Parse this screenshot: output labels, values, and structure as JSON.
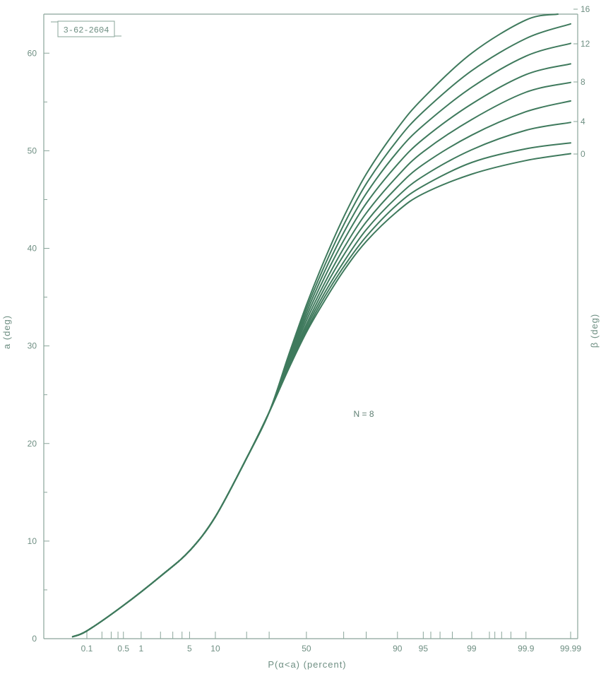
{
  "figure_id": "3-62-2604",
  "chart_data": {
    "type": "line",
    "annotation": "N = 8",
    "xlabel": "P(α<a) (percent)",
    "ylabel_left": "a (deg)",
    "ylabel_right": "β (deg)",
    "x_scale": "normal-probability",
    "x_ticks": [
      {
        "value": 0.1,
        "label": "0.1"
      },
      {
        "value": 0.2,
        "label": ""
      },
      {
        "value": 0.3,
        "label": ""
      },
      {
        "value": 0.4,
        "label": ""
      },
      {
        "value": 0.5,
        "label": "0.5"
      },
      {
        "value": 1,
        "label": "1"
      },
      {
        "value": 2,
        "label": ""
      },
      {
        "value": 3,
        "label": ""
      },
      {
        "value": 4,
        "label": ""
      },
      {
        "value": 5,
        "label": "5"
      },
      {
        "value": 10,
        "label": "10"
      },
      {
        "value": 20,
        "label": ""
      },
      {
        "value": 30,
        "label": ""
      },
      {
        "value": 50,
        "label": "50"
      },
      {
        "value": 70,
        "label": ""
      },
      {
        "value": 80,
        "label": ""
      },
      {
        "value": 90,
        "label": "90"
      },
      {
        "value": 95,
        "label": "95"
      },
      {
        "value": 96,
        "label": ""
      },
      {
        "value": 97,
        "label": ""
      },
      {
        "value": 98,
        "label": ""
      },
      {
        "value": 99,
        "label": "99"
      },
      {
        "value": 99.5,
        "label": ""
      },
      {
        "value": 99.6,
        "label": ""
      },
      {
        "value": 99.7,
        "label": ""
      },
      {
        "value": 99.8,
        "label": ""
      },
      {
        "value": 99.9,
        "label": "99.9"
      },
      {
        "value": 99.99,
        "label": "99.99"
      }
    ],
    "ylim": [
      0,
      64
    ],
    "y_ticks": [
      0,
      10,
      20,
      30,
      40,
      50,
      60
    ],
    "y_minor_ticks": [
      5,
      15,
      25,
      35,
      45,
      55
    ],
    "right_labels": [
      "16",
      "12",
      "8",
      "4",
      "0"
    ],
    "series": [
      {
        "beta": 0,
        "x": [
          0.05,
          0.1,
          0.5,
          2,
          5,
          10,
          20,
          30,
          40,
          50,
          60,
          70,
          80,
          90,
          95,
          99,
          99.9,
          99.99
        ],
        "y": [
          0.2,
          0.8,
          3.4,
          6.4,
          9.0,
          12.5,
          18.5,
          23.2,
          27.6,
          31.4,
          34.6,
          37.7,
          40.7,
          43.8,
          45.6,
          47.6,
          49.0,
          49.7
        ]
      },
      {
        "beta": 2,
        "x": [
          0.05,
          0.1,
          0.5,
          2,
          5,
          10,
          20,
          30,
          40,
          50,
          60,
          70,
          80,
          90,
          95,
          99,
          99.9,
          99.99
        ],
        "y": [
          0.2,
          0.8,
          3.4,
          6.4,
          9.0,
          12.5,
          18.5,
          23.2,
          27.7,
          31.6,
          35.0,
          38.1,
          41.2,
          44.5,
          46.4,
          48.8,
          50.2,
          50.8
        ]
      },
      {
        "beta": 4,
        "x": [
          0.05,
          0.1,
          0.5,
          2,
          5,
          10,
          20,
          30,
          40,
          50,
          60,
          70,
          80,
          90,
          95,
          99,
          99.9,
          99.99
        ],
        "y": [
          0.2,
          0.8,
          3.4,
          6.4,
          9.0,
          12.5,
          18.5,
          23.2,
          27.8,
          31.9,
          35.4,
          38.6,
          41.9,
          45.3,
          47.4,
          50.1,
          52.1,
          52.9
        ]
      },
      {
        "beta": 6,
        "x": [
          0.05,
          0.1,
          0.5,
          2,
          5,
          10,
          20,
          30,
          40,
          50,
          60,
          70,
          80,
          90,
          95,
          99,
          99.9,
          99.99
        ],
        "y": [
          0.2,
          0.8,
          3.4,
          6.4,
          9.0,
          12.5,
          18.5,
          23.2,
          28.0,
          32.2,
          35.9,
          39.3,
          42.7,
          46.3,
          48.6,
          51.6,
          54.0,
          55.1
        ]
      },
      {
        "beta": 8,
        "x": [
          0.05,
          0.1,
          0.5,
          2,
          5,
          10,
          20,
          30,
          40,
          50,
          60,
          70,
          80,
          90,
          95,
          99,
          99.9,
          99.99
        ],
        "y": [
          0.2,
          0.8,
          3.4,
          6.4,
          9.0,
          12.5,
          18.5,
          23.2,
          28.2,
          32.6,
          36.4,
          40.0,
          43.6,
          47.4,
          49.9,
          53.2,
          56.0,
          57.0
        ]
      },
      {
        "beta": 10,
        "x": [
          0.05,
          0.1,
          0.5,
          2,
          5,
          10,
          20,
          30,
          40,
          50,
          60,
          70,
          80,
          90,
          95,
          99,
          99.9,
          99.99
        ],
        "y": [
          0.2,
          0.8,
          3.4,
          6.4,
          9.0,
          12.5,
          18.5,
          23.2,
          28.4,
          33.0,
          37.0,
          40.8,
          44.6,
          48.6,
          51.2,
          54.8,
          57.8,
          58.9
        ]
      },
      {
        "beta": 12,
        "x": [
          0.05,
          0.1,
          0.5,
          2,
          5,
          10,
          20,
          30,
          40,
          50,
          60,
          70,
          80,
          90,
          95,
          99,
          99.9,
          99.99
        ],
        "y": [
          0.2,
          0.8,
          3.4,
          6.4,
          9.0,
          12.5,
          18.5,
          23.2,
          28.6,
          33.4,
          37.6,
          41.6,
          45.6,
          49.9,
          52.6,
          56.5,
          59.7,
          61.0
        ]
      },
      {
        "beta": 14,
        "x": [
          0.05,
          0.1,
          0.5,
          2,
          5,
          10,
          20,
          30,
          40,
          50,
          60,
          70,
          80,
          90,
          95,
          99,
          99.9,
          99.99
        ],
        "y": [
          0.2,
          0.8,
          3.4,
          6.4,
          9.0,
          12.5,
          18.5,
          23.2,
          28.8,
          33.8,
          38.2,
          42.4,
          46.6,
          51.1,
          54.0,
          58.2,
          61.5,
          63.0
        ]
      },
      {
        "beta": 16,
        "x": [
          0.05,
          0.1,
          0.5,
          2,
          5,
          10,
          20,
          30,
          40,
          50,
          60,
          70,
          80,
          90,
          95,
          99,
          99.9,
          99.98
        ],
        "y": [
          0.2,
          0.8,
          3.4,
          6.4,
          9.0,
          12.5,
          18.5,
          23.2,
          29.0,
          34.2,
          38.8,
          43.2,
          47.6,
          52.3,
          55.4,
          60.0,
          63.4,
          64.0
        ]
      }
    ],
    "colors": {
      "curve": "#3f7a5d",
      "axis": "#8aa59a",
      "text": "#6f8f83"
    }
  }
}
